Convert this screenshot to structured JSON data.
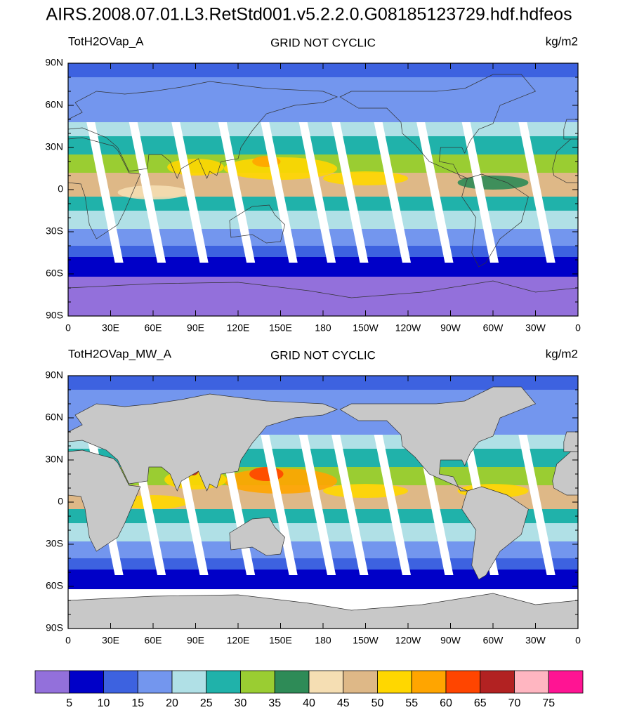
{
  "title": "AIRS.2008.07.01.L3.RetStd001.v5.2.2.0.G08185123729.hdf.hdfeos",
  "panels": [
    {
      "variable": "TotH2OVap_A",
      "subtitle": "GRID NOT CYCLIC",
      "units": "kg/m2"
    },
    {
      "variable": "TotH2OVap_MW_A",
      "subtitle": "GRID NOT CYCLIC",
      "units": "kg/m2"
    }
  ],
  "lat_ticks": [
    "90N",
    "60N",
    "30N",
    "0",
    "30S",
    "60S",
    "90S"
  ],
  "lon_ticks": [
    "0",
    "30E",
    "60E",
    "90E",
    "120E",
    "150E",
    "180",
    "150W",
    "120W",
    "90W",
    "60W",
    "30W",
    "0"
  ],
  "colorbar": {
    "colors": [
      "#9370db",
      "#0000c8",
      "#3d62e0",
      "#7396ee",
      "#b0e0e6",
      "#20b2aa",
      "#9acd32",
      "#2e8b57",
      "#f5deb3",
      "#deb887",
      "#ffd700",
      "#ffa500",
      "#ff4500",
      "#b22222",
      "#ffb6c1",
      "#ff1493"
    ],
    "labels": [
      "5",
      "10",
      "15",
      "20",
      "25",
      "30",
      "35",
      "40",
      "45",
      "50",
      "55",
      "60",
      "65",
      "70",
      "75"
    ]
  }
}
